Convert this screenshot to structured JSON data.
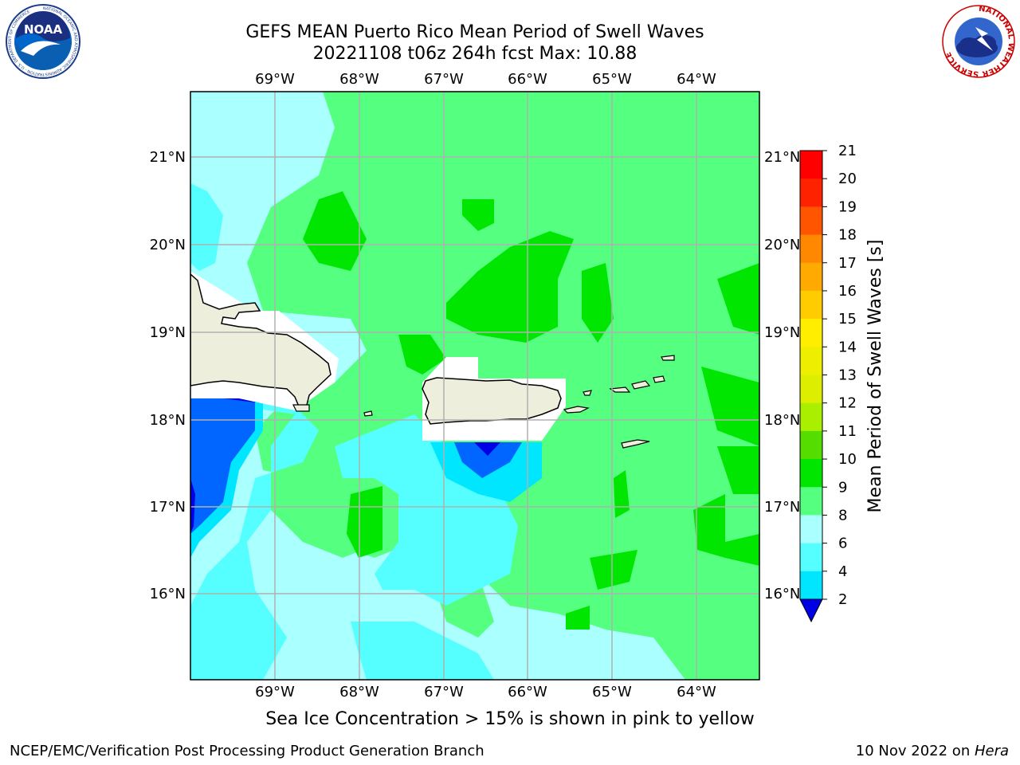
{
  "title": {
    "line1": "GEFS MEAN Puerto Rico Mean Period of Swell Waves",
    "line2": "20221108 t06z 264h fcst   Max: 10.88"
  },
  "logos": {
    "left_text": "NOAA",
    "left_ring": "NATIONAL OCEANIC AND ATMOSPHERIC ADMINISTRATION · U.S. DEPARTMENT OF COMMERCE",
    "right_ring": "NATIONAL WEATHER SERVICE"
  },
  "map": {
    "lon_labels": [
      "69°W",
      "68°W",
      "67°W",
      "66°W",
      "65°W",
      "64°W"
    ],
    "lat_labels": [
      "21°N",
      "20°N",
      "19°N",
      "18°N",
      "17°N",
      "16°N"
    ]
  },
  "colorbar": {
    "label": "Mean Period of Swell Waves [s]",
    "ticks": [
      "2",
      "4",
      "6",
      "8",
      "9",
      "10",
      "11",
      "12",
      "13",
      "14",
      "15",
      "16",
      "17",
      "18",
      "19",
      "20",
      "21"
    ],
    "colors": [
      "#0000e6",
      "#0066ff",
      "#00aaff",
      "#00e6ff",
      "#55ffff",
      "#aaffff",
      "#55ff80",
      "#00e600",
      "#55dd00",
      "#aaee00",
      "#ddee00",
      "#eeee00",
      "#ffee00",
      "#ffcc00",
      "#ffaa00",
      "#ff8800",
      "#ff5500",
      "#ff2200",
      "#ff0000"
    ]
  },
  "note": "Sea Ice Concentration > 15% is shown in pink to yellow",
  "footer": {
    "left": "NCEP/EMC/Verification Post Processing Product Generation Branch",
    "right_date": "10 Nov 2022 on ",
    "right_host": "Hera"
  }
}
